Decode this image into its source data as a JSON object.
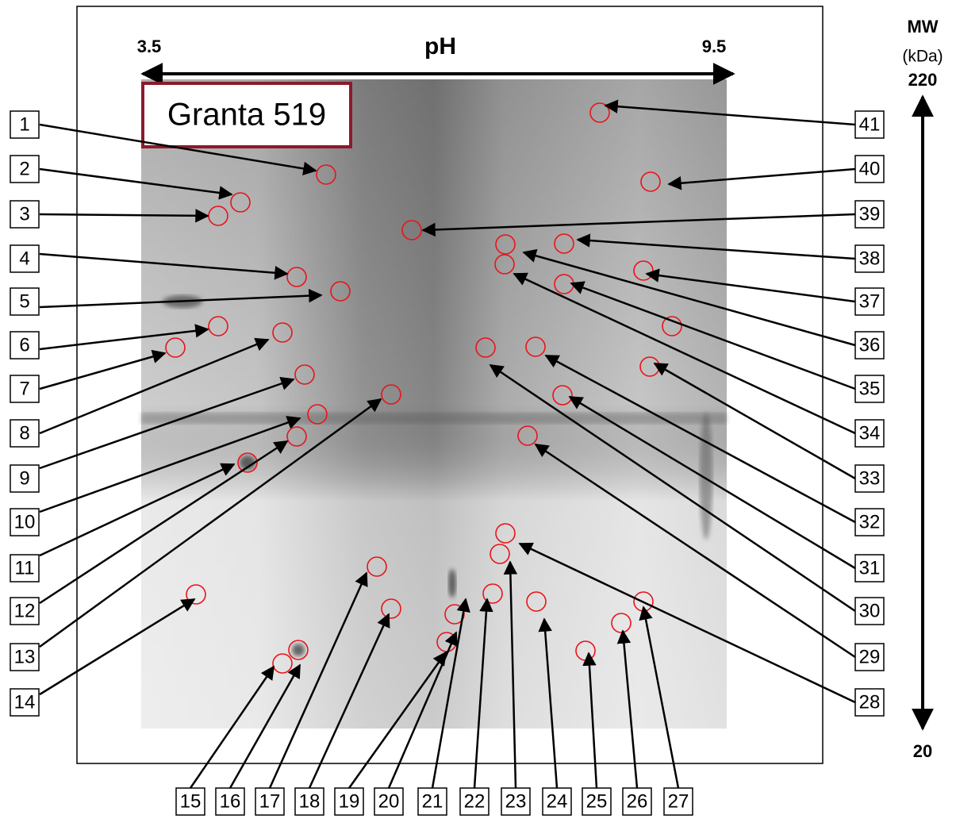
{
  "axis": {
    "ph_min": "3.5",
    "ph_label": "pH",
    "ph_max": "9.5",
    "mw_title": "MW",
    "mw_unit": "(kDa)",
    "mw_max": "220",
    "mw_min": "20"
  },
  "sample_label": "Granta 519",
  "spot_labels": [
    "1",
    "2",
    "3",
    "4",
    "5",
    "6",
    "7",
    "8",
    "9",
    "10",
    "11",
    "12",
    "13",
    "14",
    "15",
    "16",
    "17",
    "18",
    "19",
    "20",
    "21",
    "22",
    "23",
    "24",
    "25",
    "26",
    "27",
    "28",
    "29",
    "30",
    "31",
    "32",
    "33",
    "34",
    "35",
    "36",
    "37",
    "38",
    "39",
    "40",
    "41"
  ]
}
